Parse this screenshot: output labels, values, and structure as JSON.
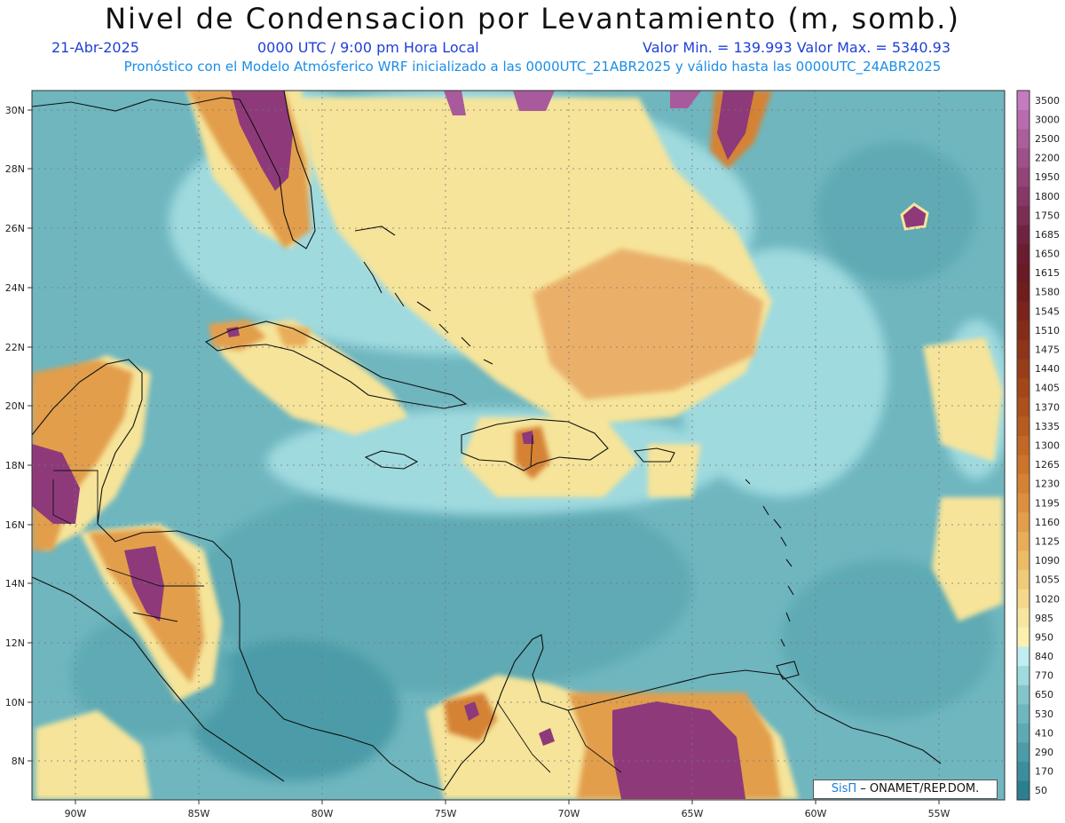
{
  "title": "Nivel de Condensacion por Levantamiento (m, somb.)",
  "date": "21-Abr-2025",
  "time": "0000 UTC / 9:00 pm Hora Local",
  "min_max": "Valor Min. = 139.993  Valor Max. = 5340.93",
  "forecast": "Pronóstico con el Modelo Atmósferico WRF inicializado a las 0000UTC_21ABR2025 y válido hasta las  0000UTC_24ABR2025",
  "credit_brand": "SisΠ",
  "credit_text": "– ONAMET/REP.DOM.",
  "lat_labels": [
    "30N",
    "28N",
    "26N",
    "24N",
    "22N",
    "20N",
    "18N",
    "16N",
    "14N",
    "12N",
    "10N",
    "8N"
  ],
  "lon_labels": [
    "90W",
    "85W",
    "80W",
    "75W",
    "70W",
    "65W",
    "60W",
    "55W"
  ],
  "colorbar": {
    "levels": [
      "50",
      "170",
      "290",
      "410",
      "530",
      "650",
      "770",
      "840",
      "950",
      "985",
      "1020",
      "1055",
      "1090",
      "1125",
      "1160",
      "1195",
      "1230",
      "1265",
      "1300",
      "1335",
      "1370",
      "1405",
      "1440",
      "1475",
      "1510",
      "1545",
      "1580",
      "1615",
      "1650",
      "1685",
      "1750",
      "1800",
      "1950",
      "2200",
      "2500",
      "3000",
      "3500"
    ],
    "colors": [
      "#2b7f8e",
      "#3b8e9b",
      "#4c9ca8",
      "#5eaab4",
      "#6fb6bf",
      "#84c5cc",
      "#9fdadf",
      "#bfeef0",
      "#fbf0b0",
      "#f8e6a0",
      "#f4d98c",
      "#f0ca78",
      "#ecbb66",
      "#e8ad58",
      "#e29e4b",
      "#dc903f",
      "#d58234",
      "#cc742b",
      "#c26724",
      "#b85b1f",
      "#ad501c",
      "#a3461a",
      "#983d19",
      "#8e3419",
      "#842c1a",
      "#7a241b",
      "#701d1d",
      "#6a1a24",
      "#6a1c30",
      "#6e2440",
      "#7a2e52",
      "#863866",
      "#924478",
      "#9e508a",
      "#ab5e9c",
      "#b86cae",
      "#c57bc0"
    ]
  },
  "colors": {
    "ocean_mid": "#6fb6bf",
    "ocean_light": "#9fdadf",
    "ocean_dark": "#4c9ca8",
    "yellow": "#f6e49a",
    "orange": "#e7a75a",
    "brown": "#a9541e",
    "purple": "#8e3a7a"
  }
}
